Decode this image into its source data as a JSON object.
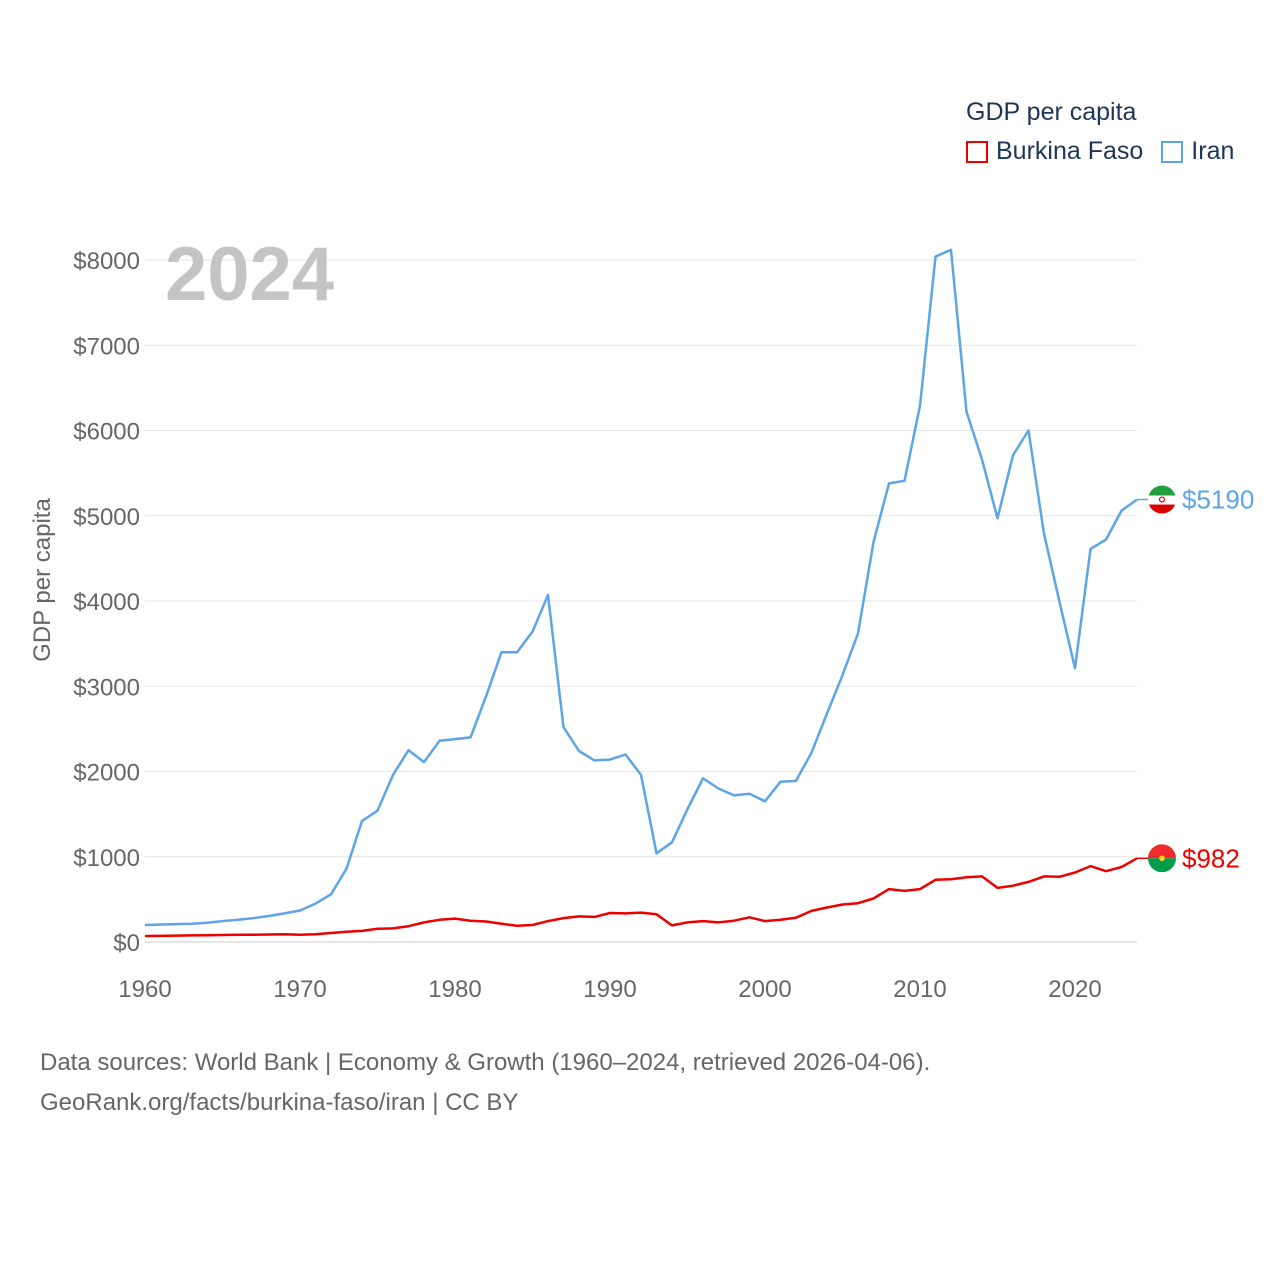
{
  "legend": {
    "title": "GDP per capita",
    "items": [
      {
        "name": "Burkina Faso",
        "color": "#ee0000"
      },
      {
        "name": "Iran",
        "color": "#5da5e6"
      }
    ]
  },
  "year_label": "2024",
  "footer": {
    "line1": "Data sources: World Bank | Economy & Growth (1960–2024, retrieved 2026-04-06).",
    "line2": "GeoRank.org/facts/burkina-faso/iran | CC BY"
  },
  "chart_data": {
    "type": "line",
    "title": "GDP per capita",
    "xlabel": "",
    "ylabel": "GDP per capita",
    "xlim": [
      1960,
      2024
    ],
    "ylim": [
      0,
      8000
    ],
    "x_ticks": [
      1960,
      1970,
      1980,
      1990,
      2000,
      2010,
      2020
    ],
    "y_ticks": [
      0,
      1000,
      2000,
      3000,
      4000,
      5000,
      6000,
      7000,
      8000
    ],
    "y_tick_labels": [
      "$0",
      "$1000",
      "$2000",
      "$3000",
      "$4000",
      "$5000",
      "$6000",
      "$7000",
      "$8000"
    ],
    "x_tick_labels": [
      "1960",
      "1970",
      "1980",
      "1990",
      "2000",
      "2010",
      "2020"
    ],
    "grid": true,
    "series": [
      {
        "name": "Iran",
        "color": "#5da5e6",
        "end_label": "$5190",
        "flag": "iran-flag-icon",
        "x": [
          1960,
          1961,
          1962,
          1963,
          1964,
          1965,
          1966,
          1967,
          1968,
          1969,
          1970,
          1971,
          1972,
          1973,
          1974,
          1975,
          1976,
          1977,
          1978,
          1979,
          1980,
          1981,
          1982,
          1983,
          1984,
          1985,
          1986,
          1987,
          1988,
          1989,
          1990,
          1991,
          1992,
          1993,
          1994,
          1995,
          1996,
          1997,
          1998,
          1999,
          2000,
          2001,
          2002,
          2003,
          2004,
          2005,
          2006,
          2007,
          2008,
          2009,
          2010,
          2011,
          2012,
          2013,
          2014,
          2015,
          2016,
          2017,
          2018,
          2019,
          2020,
          2021,
          2022,
          2023,
          2024
        ],
        "values": [
          200,
          205,
          210,
          215,
          225,
          245,
          260,
          280,
          305,
          335,
          370,
          450,
          560,
          860,
          1420,
          1540,
          1960,
          2250,
          2110,
          2360,
          2380,
          2400,
          2880,
          3400,
          3400,
          3640,
          4070,
          2520,
          2240,
          2130,
          2140,
          2200,
          1960,
          1040,
          1170,
          1560,
          1920,
          1800,
          1720,
          1740,
          1650,
          1880,
          1890,
          2220,
          2680,
          3130,
          3620,
          4690,
          5380,
          5410,
          6290,
          8040,
          8120,
          6220,
          5660,
          4970,
          5710,
          6000,
          4790,
          3990,
          3210,
          4610,
          4720,
          5060,
          5190
        ]
      },
      {
        "name": "Burkina Faso",
        "color": "#ee0000",
        "end_label": "$982",
        "flag": "burkina-faso-flag-icon",
        "x": [
          1960,
          1961,
          1962,
          1963,
          1964,
          1965,
          1966,
          1967,
          1968,
          1969,
          1970,
          1971,
          1972,
          1973,
          1974,
          1975,
          1976,
          1977,
          1978,
          1979,
          1980,
          1981,
          1982,
          1983,
          1984,
          1985,
          1986,
          1987,
          1988,
          1989,
          1990,
          1991,
          1992,
          1993,
          1994,
          1995,
          1996,
          1997,
          1998,
          1999,
          2000,
          2001,
          2002,
          2003,
          2004,
          2005,
          2006,
          2007,
          2008,
          2009,
          2010,
          2011,
          2012,
          2013,
          2014,
          2015,
          2016,
          2017,
          2018,
          2019,
          2020,
          2021,
          2022,
          2023,
          2024
        ],
        "values": [
          70,
          72,
          75,
          78,
          80,
          82,
          84,
          86,
          88,
          90,
          85,
          90,
          105,
          120,
          130,
          155,
          160,
          185,
          230,
          260,
          275,
          250,
          240,
          215,
          190,
          200,
          245,
          280,
          300,
          295,
          340,
          335,
          345,
          325,
          195,
          230,
          245,
          230,
          250,
          290,
          245,
          260,
          285,
          365,
          405,
          440,
          455,
          510,
          620,
          600,
          620,
          730,
          735,
          760,
          770,
          635,
          660,
          705,
          770,
          765,
          815,
          890,
          830,
          880,
          982
        ]
      }
    ]
  }
}
